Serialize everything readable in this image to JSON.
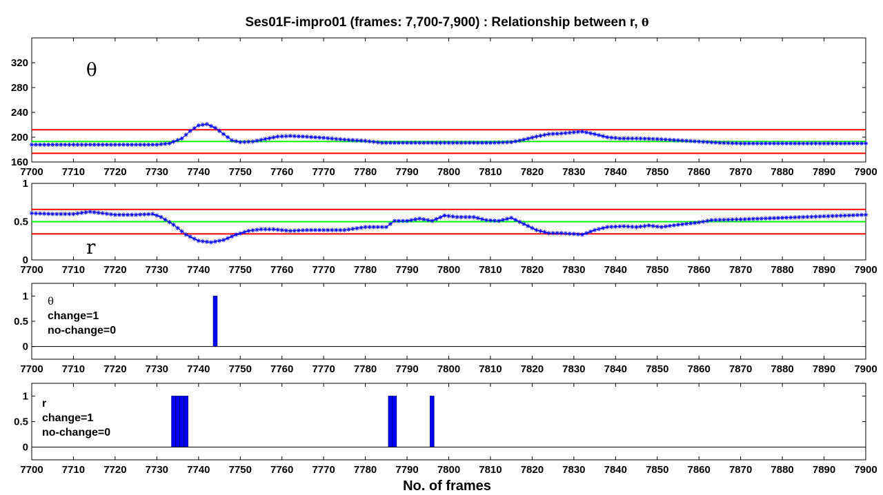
{
  "figure": {
    "title_prefix": "Ses01F-impro01 (frames: 7,700-7,900) : Relationship between r, ",
    "title_symbol": "θ",
    "xlabel": "No. of frames"
  },
  "chart_data": [
    {
      "type": "line",
      "title": "",
      "annotation": "θ",
      "xlim": [
        7700,
        7900
      ],
      "ylim": [
        160,
        360
      ],
      "xticks": [
        7700,
        7710,
        7720,
        7730,
        7740,
        7750,
        7760,
        7770,
        7780,
        7790,
        7800,
        7810,
        7820,
        7830,
        7840,
        7850,
        7860,
        7870,
        7880,
        7890,
        7900
      ],
      "yticks": [
        160,
        200,
        240,
        280,
        320
      ],
      "hlines": [
        {
          "y": 212,
          "color": "#ff0000"
        },
        {
          "y": 193,
          "color": "#00ff00"
        },
        {
          "y": 174,
          "color": "#ff0000"
        }
      ],
      "series": [
        {
          "color": "#0000ff",
          "marker": "*",
          "points": [
            [
              7700,
              188
            ],
            [
              7705,
              188
            ],
            [
              7710,
              188
            ],
            [
              7715,
              188
            ],
            [
              7720,
              188
            ],
            [
              7725,
              188
            ],
            [
              7730,
              188
            ],
            [
              7733,
              190
            ],
            [
              7736,
              198
            ],
            [
              7738,
              210
            ],
            [
              7740,
              219
            ],
            [
              7742,
              221
            ],
            [
              7744,
              215
            ],
            [
              7746,
              205
            ],
            [
              7748,
              195
            ],
            [
              7750,
              192
            ],
            [
              7753,
              193
            ],
            [
              7756,
              197
            ],
            [
              7759,
              201
            ],
            [
              7762,
              202
            ],
            [
              7765,
              201
            ],
            [
              7770,
              199
            ],
            [
              7775,
              196
            ],
            [
              7780,
              194
            ],
            [
              7784,
              191
            ],
            [
              7790,
              191
            ],
            [
              7795,
              191
            ],
            [
              7800,
              191
            ],
            [
              7805,
              191
            ],
            [
              7810,
              191
            ],
            [
              7815,
              192
            ],
            [
              7818,
              196
            ],
            [
              7821,
              201
            ],
            [
              7824,
              205
            ],
            [
              7827,
              206
            ],
            [
              7830,
              208
            ],
            [
              7832,
              209
            ],
            [
              7835,
              205
            ],
            [
              7838,
              200
            ],
            [
              7841,
              198
            ],
            [
              7845,
              198
            ],
            [
              7850,
              197
            ],
            [
              7855,
              195
            ],
            [
              7860,
              193
            ],
            [
              7865,
              191
            ],
            [
              7870,
              190
            ],
            [
              7880,
              190
            ],
            [
              7890,
              190
            ],
            [
              7900,
              190
            ]
          ]
        }
      ]
    },
    {
      "type": "line",
      "title": "",
      "annotation": "r",
      "xlim": [
        7700,
        7900
      ],
      "ylim": [
        0,
        1
      ],
      "xticks": [
        7700,
        7710,
        7720,
        7730,
        7740,
        7750,
        7760,
        7770,
        7780,
        7790,
        7800,
        7810,
        7820,
        7830,
        7840,
        7850,
        7860,
        7870,
        7880,
        7890,
        7900
      ],
      "yticks": [
        0,
        0.5,
        1
      ],
      "ytick_labels": [
        "0",
        "0.5",
        "1"
      ],
      "hlines": [
        {
          "y": 0.66,
          "color": "#ff0000"
        },
        {
          "y": 0.5,
          "color": "#00ff00"
        },
        {
          "y": 0.34,
          "color": "#ff0000"
        }
      ],
      "series": [
        {
          "color": "#0000ff",
          "marker": "*",
          "points": [
            [
              7700,
              0.61
            ],
            [
              7705,
              0.6
            ],
            [
              7710,
              0.6
            ],
            [
              7714,
              0.63
            ],
            [
              7717,
              0.61
            ],
            [
              7720,
              0.59
            ],
            [
              7725,
              0.59
            ],
            [
              7729,
              0.6
            ],
            [
              7731,
              0.56
            ],
            [
              7734,
              0.46
            ],
            [
              7737,
              0.33
            ],
            [
              7740,
              0.25
            ],
            [
              7743,
              0.23
            ],
            [
              7746,
              0.26
            ],
            [
              7749,
              0.33
            ],
            [
              7752,
              0.38
            ],
            [
              7755,
              0.4
            ],
            [
              7758,
              0.4
            ],
            [
              7762,
              0.38
            ],
            [
              7766,
              0.39
            ],
            [
              7770,
              0.39
            ],
            [
              7775,
              0.39
            ],
            [
              7780,
              0.43
            ],
            [
              7785,
              0.43
            ],
            [
              7787,
              0.51
            ],
            [
              7790,
              0.51
            ],
            [
              7793,
              0.54
            ],
            [
              7796,
              0.51
            ],
            [
              7799,
              0.58
            ],
            [
              7802,
              0.56
            ],
            [
              7806,
              0.56
            ],
            [
              7809,
              0.52
            ],
            [
              7812,
              0.51
            ],
            [
              7815,
              0.55
            ],
            [
              7818,
              0.47
            ],
            [
              7821,
              0.39
            ],
            [
              7824,
              0.35
            ],
            [
              7827,
              0.35
            ],
            [
              7830,
              0.34
            ],
            [
              7832,
              0.33
            ],
            [
              7835,
              0.39
            ],
            [
              7838,
              0.43
            ],
            [
              7842,
              0.44
            ],
            [
              7845,
              0.43
            ],
            [
              7848,
              0.45
            ],
            [
              7851,
              0.43
            ],
            [
              7855,
              0.46
            ],
            [
              7860,
              0.49
            ],
            [
              7863,
              0.52
            ],
            [
              7870,
              0.53
            ],
            [
              7880,
              0.55
            ],
            [
              7890,
              0.57
            ],
            [
              7900,
              0.59
            ]
          ]
        }
      ]
    },
    {
      "type": "bar",
      "title": "",
      "annotation": [
        "θ",
        "change=1",
        "no-change=0"
      ],
      "xlim": [
        7700,
        7900
      ],
      "ylim": [
        -0.25,
        1.25
      ],
      "xticks": [
        7700,
        7710,
        7720,
        7730,
        7740,
        7750,
        7760,
        7770,
        7780,
        7790,
        7800,
        7810,
        7820,
        7830,
        7840,
        7850,
        7860,
        7870,
        7880,
        7890,
        7900
      ],
      "yticks": [
        0,
        0.5,
        1
      ],
      "ytick_labels": [
        "0",
        "0.5",
        "1"
      ],
      "bar_color": "#0000ff",
      "bars": [
        {
          "x": 7744,
          "value": 1
        }
      ]
    },
    {
      "type": "bar",
      "title": "",
      "annotation": [
        "r",
        "change=1",
        "no-change=0"
      ],
      "xlim": [
        7700,
        7900
      ],
      "ylim": [
        -0.25,
        1.25
      ],
      "xticks": [
        7700,
        7710,
        7720,
        7730,
        7740,
        7750,
        7760,
        7770,
        7780,
        7790,
        7800,
        7810,
        7820,
        7830,
        7840,
        7850,
        7860,
        7870,
        7880,
        7890,
        7900
      ],
      "yticks": [
        0,
        0.5,
        1
      ],
      "ytick_labels": [
        "0",
        "0.5",
        "1"
      ],
      "bar_color": "#0000ff",
      "bars": [
        {
          "x": 7734,
          "value": 1
        },
        {
          "x": 7735,
          "value": 1
        },
        {
          "x": 7736,
          "value": 1
        },
        {
          "x": 7737,
          "value": 1
        },
        {
          "x": 7786,
          "value": 1
        },
        {
          "x": 7787,
          "value": 1
        },
        {
          "x": 7796,
          "value": 1
        }
      ]
    }
  ]
}
